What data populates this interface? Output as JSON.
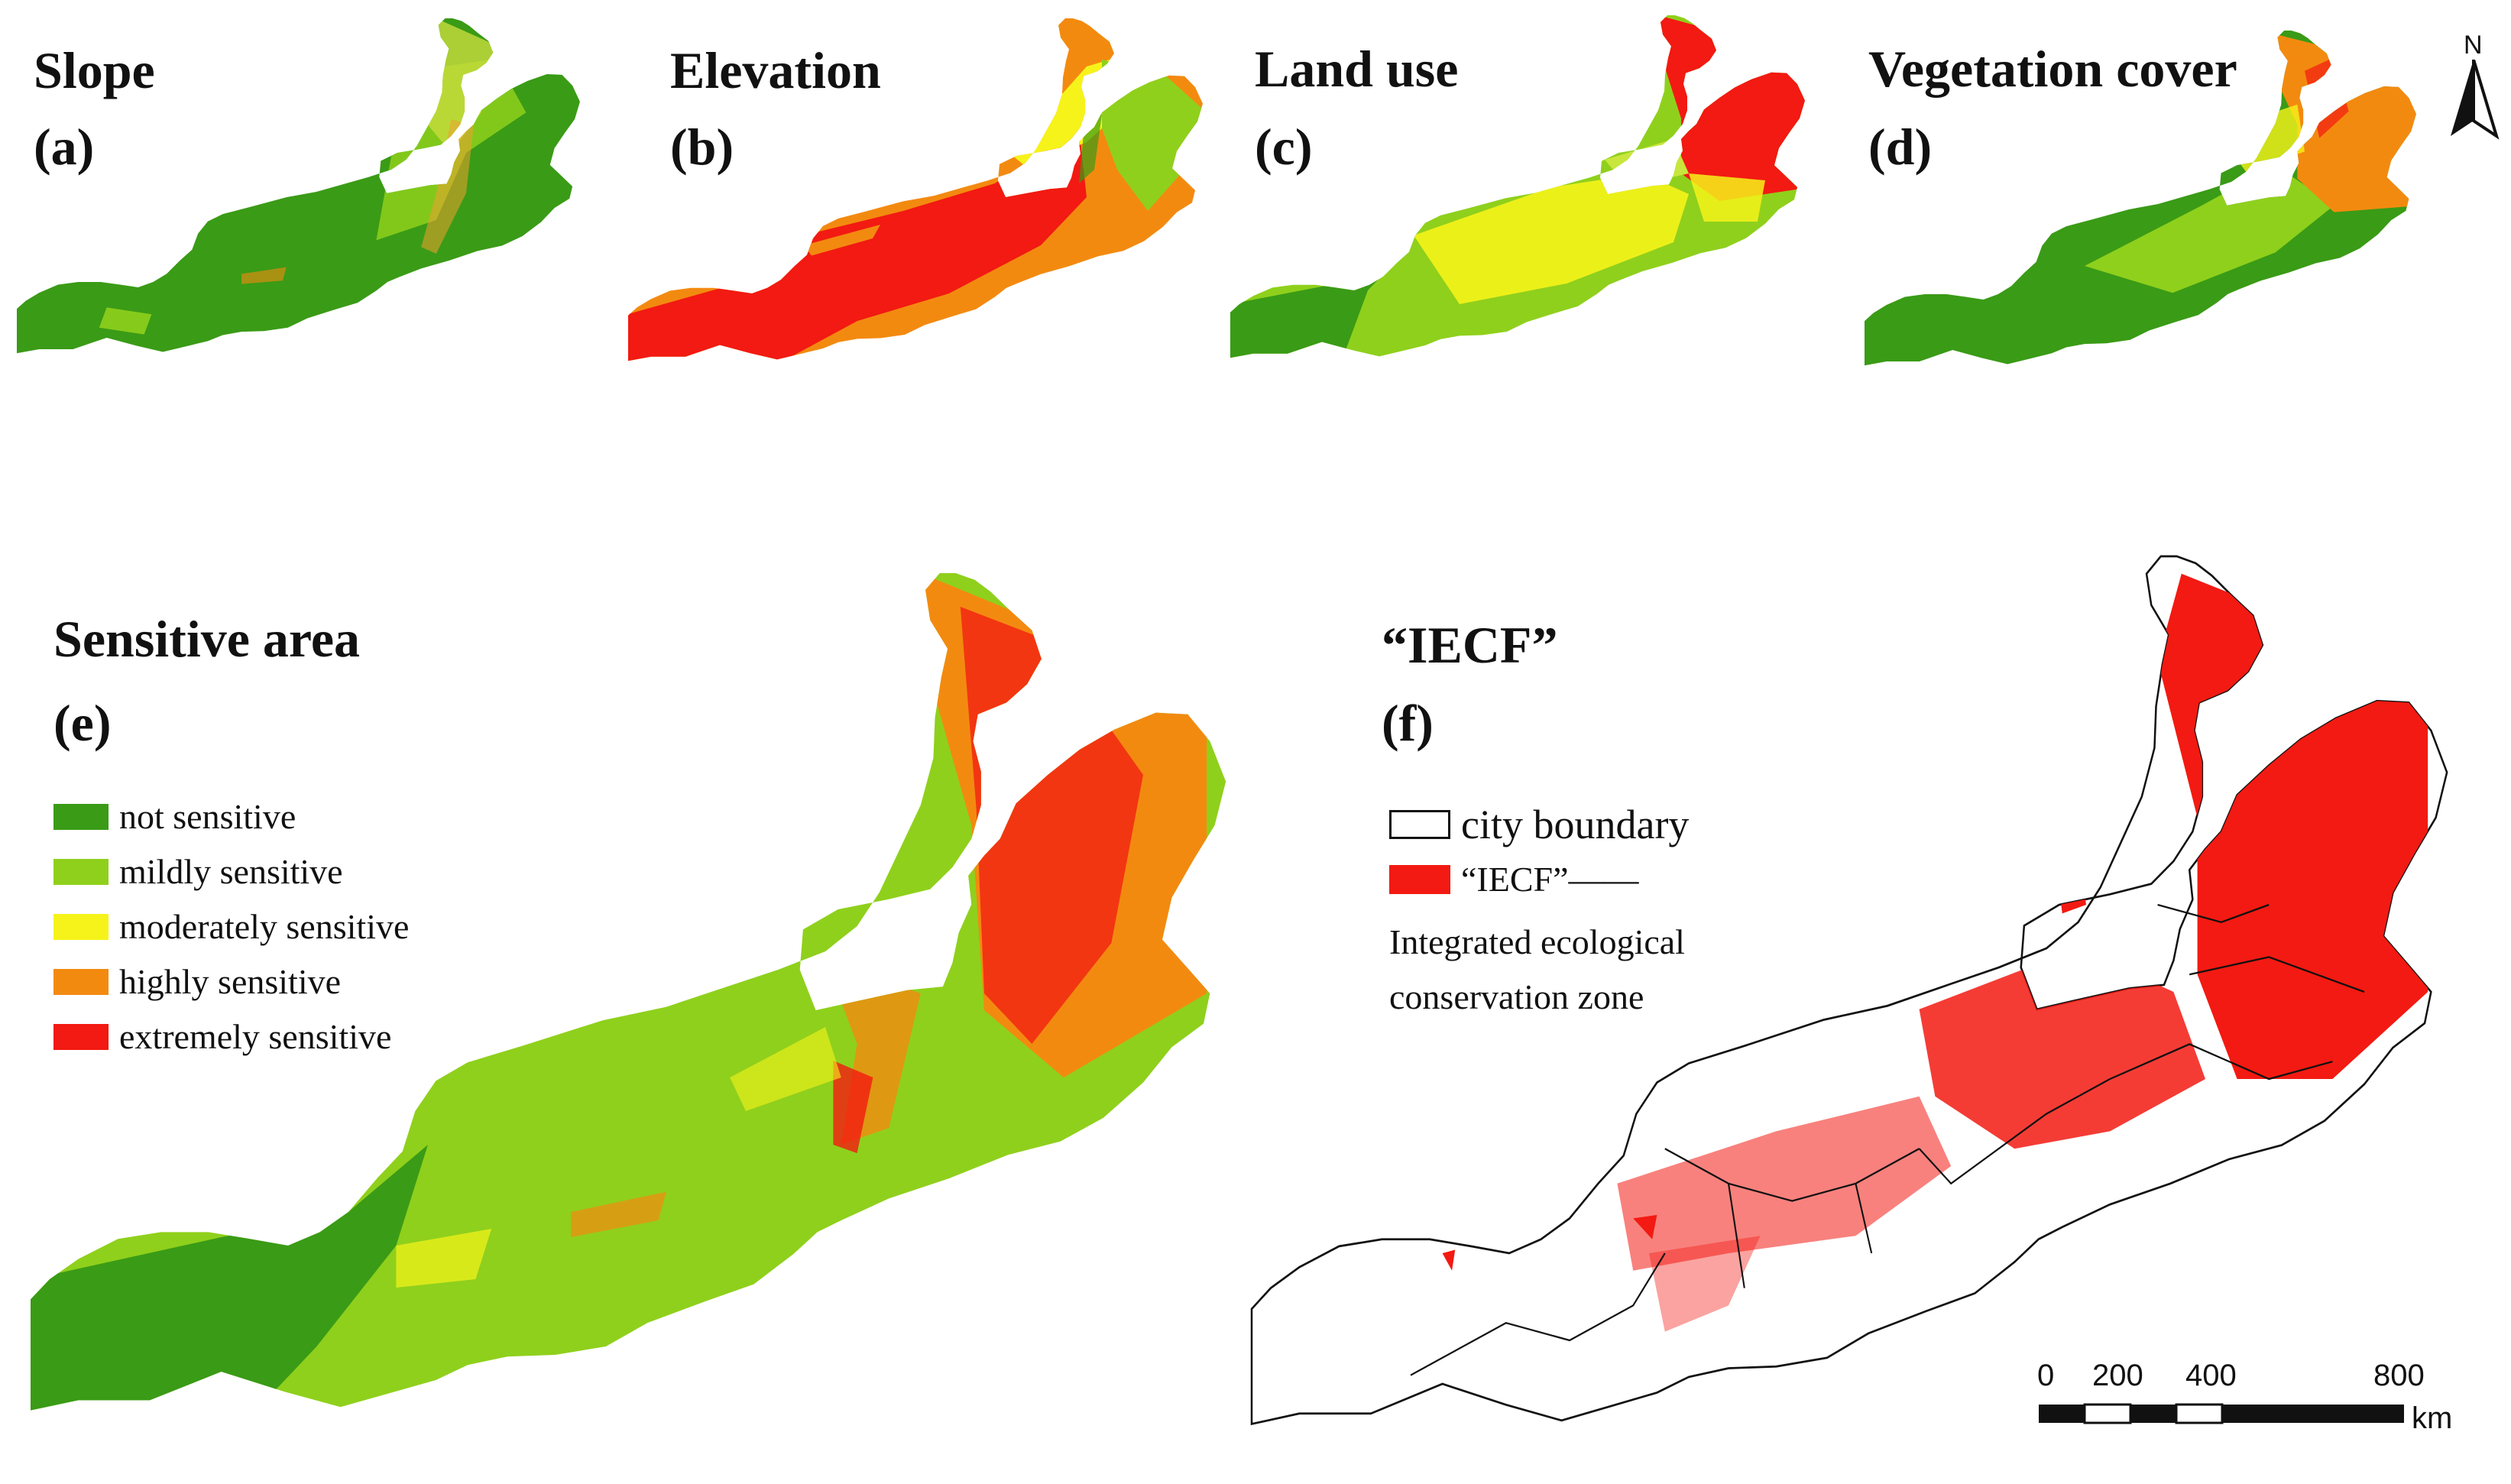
{
  "panels": {
    "a": {
      "title": "Slope",
      "label": "(a)"
    },
    "b": {
      "title": "Elevation",
      "label": "(b)"
    },
    "c": {
      "title": "Land use",
      "label": "(c)"
    },
    "d": {
      "title": "Vegetation cover",
      "label": "(d)"
    },
    "e": {
      "title": "Sensitive area",
      "label": "(e)"
    },
    "f": {
      "title": "“IECF”",
      "label": "(f)"
    }
  },
  "north_arrow": {
    "label": "N"
  },
  "legend_e": {
    "items": [
      {
        "label": "not sensitive",
        "color": "#3a9b16"
      },
      {
        "label": "mildly sensitive",
        "color": "#8fd01c"
      },
      {
        "label": "moderately sensitive",
        "color": "#f6f31a"
      },
      {
        "label": "highly sensitive",
        "color": "#f38a10"
      },
      {
        "label": "extremely sensitive",
        "color": "#f21a12"
      }
    ]
  },
  "legend_f": {
    "boundary_label": "city boundary",
    "iecf_label": "“IECF”——",
    "iecf_color": "#f21a12",
    "iecf_desc_1": "Integrated ecological",
    "iecf_desc_2": "conservation zone"
  },
  "scale_bar": {
    "ticks": [
      "0",
      "200",
      "400",
      "800"
    ],
    "unit": "km"
  }
}
